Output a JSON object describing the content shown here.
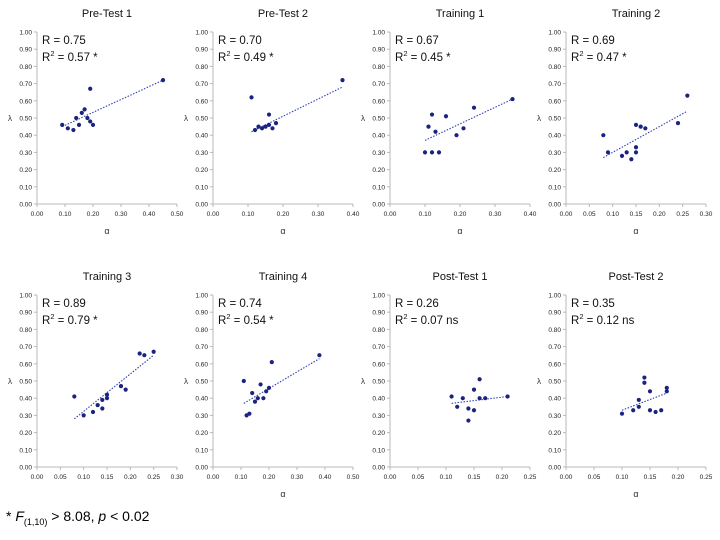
{
  "footnote": {
    "star": "* ",
    "f_letter": "F",
    "f_df": "(1,10)",
    "f_rest": " > 8.08, ",
    "p_letter": "p",
    "p_rest": " < 0.02"
  },
  "chart_data": [
    {
      "type": "scatter",
      "title": "Pre-Test 1",
      "xlabel": "α",
      "ylabel": "λ",
      "xlim": [
        0,
        0.5
      ],
      "ylim": [
        0,
        1.0
      ],
      "xticks": [
        "0.00",
        "0.10",
        "0.20",
        "0.30",
        "0.40",
        "0.50"
      ],
      "yticks": [
        "0.00",
        "0.10",
        "0.20",
        "0.30",
        "0.40",
        "0.50",
        "0.60",
        "0.70",
        "0.80",
        "0.90",
        "1.00"
      ],
      "stat_r": "R = 0.75",
      "stat_r2_prefix": "R",
      "stat_r2_sup": "2",
      "stat_r2_value": " = 0.57 *",
      "x": [
        0.09,
        0.11,
        0.13,
        0.14,
        0.15,
        0.16,
        0.17,
        0.18,
        0.19,
        0.19,
        0.2,
        0.45
      ],
      "y": [
        0.46,
        0.44,
        0.43,
        0.5,
        0.46,
        0.53,
        0.55,
        0.5,
        0.67,
        0.48,
        0.46,
        0.72
      ],
      "trend": [
        [
          0.09,
          0.45
        ],
        [
          0.45,
          0.72
        ]
      ]
    },
    {
      "type": "scatter",
      "title": "Pre-Test 2",
      "xlabel": "α",
      "ylabel": "λ",
      "xlim": [
        0,
        0.4
      ],
      "ylim": [
        0,
        1.0
      ],
      "xticks": [
        "0.00",
        "0.10",
        "0.20",
        "0.30",
        "0.40"
      ],
      "yticks": [
        "0.00",
        "0.10",
        "0.20",
        "0.30",
        "0.40",
        "0.50",
        "0.60",
        "0.70",
        "0.80",
        "0.90",
        "1.00"
      ],
      "stat_r": "R = 0.70",
      "stat_r2_prefix": "R",
      "stat_r2_sup": "2",
      "stat_r2_value": " = 0.49 *",
      "x": [
        0.11,
        0.12,
        0.13,
        0.14,
        0.15,
        0.16,
        0.16,
        0.17,
        0.18,
        0.37
      ],
      "y": [
        0.62,
        0.43,
        0.45,
        0.44,
        0.45,
        0.46,
        0.52,
        0.44,
        0.47,
        0.72
      ],
      "trend": [
        [
          0.11,
          0.42
        ],
        [
          0.37,
          0.68
        ]
      ]
    },
    {
      "type": "scatter",
      "title": "Training 1",
      "xlabel": "α",
      "ylabel": "λ",
      "xlim": [
        0,
        0.4
      ],
      "ylim": [
        0,
        1.0
      ],
      "xticks": [
        "0.00",
        "0.10",
        "0.20",
        "0.30",
        "0.40"
      ],
      "yticks": [
        "0.00",
        "0.10",
        "0.20",
        "0.30",
        "0.40",
        "0.50",
        "0.60",
        "0.70",
        "0.80",
        "0.90",
        "1.00"
      ],
      "stat_r": "R = 0.67",
      "stat_r2_prefix": "R",
      "stat_r2_sup": "2",
      "stat_r2_value": " = 0.45 *",
      "x": [
        0.1,
        0.11,
        0.12,
        0.12,
        0.13,
        0.14,
        0.16,
        0.19,
        0.21,
        0.24,
        0.35
      ],
      "y": [
        0.3,
        0.45,
        0.52,
        0.3,
        0.42,
        0.3,
        0.51,
        0.4,
        0.44,
        0.56,
        0.61
      ],
      "trend": [
        [
          0.1,
          0.37
        ],
        [
          0.35,
          0.61
        ]
      ]
    },
    {
      "type": "scatter",
      "title": "Training 2",
      "xlabel": "α",
      "ylabel": "λ",
      "xlim": [
        0,
        0.3
      ],
      "ylim": [
        0,
        1.0
      ],
      "xticks": [
        "0.00",
        "0.05",
        "0.10",
        "0.15",
        "0.20",
        "0.25",
        "0.30"
      ],
      "yticks": [
        "0.00",
        "0.10",
        "0.20",
        "0.30",
        "0.40",
        "0.50",
        "0.60",
        "0.70",
        "0.80",
        "0.90",
        "1.00"
      ],
      "stat_r": "R = 0.69",
      "stat_r2_prefix": "R",
      "stat_r2_sup": "2",
      "stat_r2_value": " = 0.47 *",
      "x": [
        0.08,
        0.09,
        0.12,
        0.13,
        0.14,
        0.15,
        0.15,
        0.15,
        0.16,
        0.17,
        0.24,
        0.26
      ],
      "y": [
        0.4,
        0.3,
        0.28,
        0.3,
        0.26,
        0.33,
        0.46,
        0.3,
        0.45,
        0.44,
        0.47,
        0.63
      ],
      "trend": [
        [
          0.08,
          0.27
        ],
        [
          0.26,
          0.54
        ]
      ]
    },
    {
      "type": "scatter",
      "title": "Training 3",
      "xlabel": "",
      "ylabel": "λ",
      "xlim": [
        0,
        0.3
      ],
      "ylim": [
        0,
        1.0
      ],
      "xticks": [
        "0.00",
        "0.05",
        "0.10",
        "0.15",
        "0.20",
        "0.25",
        "0.30"
      ],
      "yticks": [
        "0.00",
        "0.10",
        "0.20",
        "0.30",
        "0.40",
        "0.50",
        "0.60",
        "0.70",
        "0.80",
        "0.90",
        "1.00"
      ],
      "stat_r": "R = 0.89",
      "stat_r2_prefix": "R",
      "stat_r2_sup": "2",
      "stat_r2_value": " = 0.79 *",
      "x": [
        0.08,
        0.1,
        0.12,
        0.13,
        0.14,
        0.14,
        0.15,
        0.15,
        0.18,
        0.19,
        0.22,
        0.23,
        0.25
      ],
      "y": [
        0.41,
        0.3,
        0.32,
        0.36,
        0.39,
        0.34,
        0.4,
        0.42,
        0.47,
        0.45,
        0.66,
        0.65,
        0.67
      ],
      "trend": [
        [
          0.08,
          0.28
        ],
        [
          0.25,
          0.65
        ]
      ]
    },
    {
      "type": "scatter",
      "title": "Training 4",
      "xlabel": "α",
      "ylabel": "λ",
      "xlim": [
        0,
        0.5
      ],
      "ylim": [
        0,
        1.0
      ],
      "xticks": [
        "0.00",
        "0.10",
        "0.20",
        "0.30",
        "0.40",
        "0.50"
      ],
      "yticks": [
        "0.00",
        "0.10",
        "0.20",
        "0.30",
        "0.40",
        "0.50",
        "0.60",
        "0.70",
        "0.80",
        "0.90",
        "1.00"
      ],
      "stat_r": "R = 0.74",
      "stat_r2_prefix": "R",
      "stat_r2_sup": "2",
      "stat_r2_value": " = 0.54 *",
      "x": [
        0.11,
        0.12,
        0.13,
        0.14,
        0.15,
        0.16,
        0.17,
        0.18,
        0.19,
        0.2,
        0.21,
        0.38
      ],
      "y": [
        0.5,
        0.3,
        0.31,
        0.43,
        0.38,
        0.4,
        0.48,
        0.4,
        0.44,
        0.46,
        0.61,
        0.65
      ],
      "trend": [
        [
          0.11,
          0.37
        ],
        [
          0.38,
          0.63
        ]
      ]
    },
    {
      "type": "scatter",
      "title": "Post-Test 1",
      "xlabel": "",
      "ylabel": "λ",
      "xlim": [
        0,
        0.25
      ],
      "ylim": [
        0,
        1.0
      ],
      "xticks": [
        "0.00",
        "0.05",
        "0.10",
        "0.15",
        "0.20",
        "0.25"
      ],
      "yticks": [
        "0.00",
        "0.10",
        "0.20",
        "0.30",
        "0.40",
        "0.50",
        "0.60",
        "0.70",
        "0.80",
        "0.90",
        "1.00"
      ],
      "stat_r": "R = 0.26",
      "stat_r2_prefix": "R",
      "stat_r2_sup": "2",
      "stat_r2_value": " = 0.07 ns",
      "x": [
        0.11,
        0.12,
        0.13,
        0.14,
        0.14,
        0.15,
        0.15,
        0.16,
        0.16,
        0.17,
        0.21
      ],
      "y": [
        0.41,
        0.35,
        0.4,
        0.27,
        0.34,
        0.45,
        0.33,
        0.4,
        0.51,
        0.4,
        0.41
      ],
      "trend": [
        [
          0.11,
          0.37
        ],
        [
          0.21,
          0.41
        ]
      ]
    },
    {
      "type": "scatter",
      "title": "Post-Test 2",
      "xlabel": "α",
      "ylabel": "λ",
      "xlim": [
        0,
        0.25
      ],
      "ylim": [
        0,
        1.0
      ],
      "xticks": [
        "0.00",
        "0.05",
        "0.10",
        "0.15",
        "0.20",
        "0.25"
      ],
      "yticks": [
        "0.00",
        "0.10",
        "0.20",
        "0.30",
        "0.40",
        "0.50",
        "0.60",
        "0.70",
        "0.80",
        "0.90",
        "1.00"
      ],
      "stat_r": "R = 0.35",
      "stat_r2_prefix": "R",
      "stat_r2_sup": "2",
      "stat_r2_value": " = 0.12 ns",
      "x": [
        0.1,
        0.12,
        0.13,
        0.13,
        0.14,
        0.14,
        0.15,
        0.15,
        0.16,
        0.17,
        0.18,
        0.18
      ],
      "y": [
        0.31,
        0.33,
        0.39,
        0.35,
        0.52,
        0.49,
        0.33,
        0.44,
        0.32,
        0.33,
        0.46,
        0.44
      ],
      "trend": [
        [
          0.1,
          0.33
        ],
        [
          0.18,
          0.43
        ]
      ]
    }
  ]
}
